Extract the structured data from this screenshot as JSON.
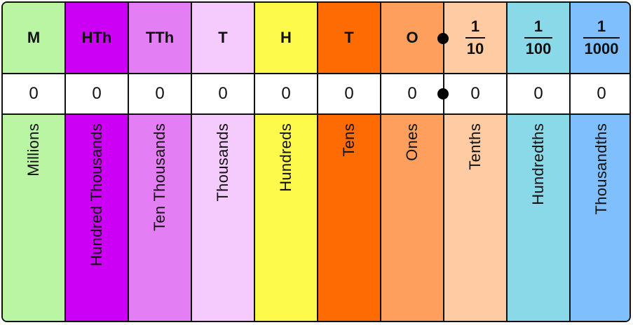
{
  "colors": {
    "millions": "#b9f5a2",
    "hundred_thousands": "#cc00f4",
    "ten_thousands": "#e47ef5",
    "thousands": "#f5cbfe",
    "hundreds": "#fefa4c",
    "tens": "#fe6b02",
    "ones": "#fe9f5d",
    "tenths": "#fecba2",
    "hundredths": "#8ad9e8",
    "thousandths": "#80bffd",
    "border": "#111111",
    "decimal_point": "#000000"
  },
  "columns": [
    {
      "key": "millions",
      "heading": "M",
      "digit": "0",
      "name": "Millions"
    },
    {
      "key": "hundred_thousands",
      "heading": "HTh",
      "digit": "0",
      "name": "Hundred Thousands"
    },
    {
      "key": "ten_thousands",
      "heading": "TTh",
      "digit": "0",
      "name": "Ten Thousands"
    },
    {
      "key": "thousands",
      "heading": "T",
      "digit": "0",
      "name": "Thousands"
    },
    {
      "key": "hundreds",
      "heading": "H",
      "digit": "0",
      "name": "Hundreds"
    },
    {
      "key": "tens",
      "heading": "T",
      "digit": "0",
      "name": "Tens"
    },
    {
      "key": "ones",
      "heading": "O",
      "digit": "0",
      "name": "Ones"
    },
    {
      "key": "tenths",
      "heading_numerator": "1",
      "heading_denominator": "10",
      "digit": "0",
      "name": "Tenths"
    },
    {
      "key": "hundredths",
      "heading_numerator": "1",
      "heading_denominator": "100",
      "digit": "0",
      "name": "Hundredths"
    },
    {
      "key": "thousandths",
      "heading_numerator": "1",
      "heading_denominator": "1000",
      "digit": "0",
      "name": "Thousandths"
    }
  ]
}
